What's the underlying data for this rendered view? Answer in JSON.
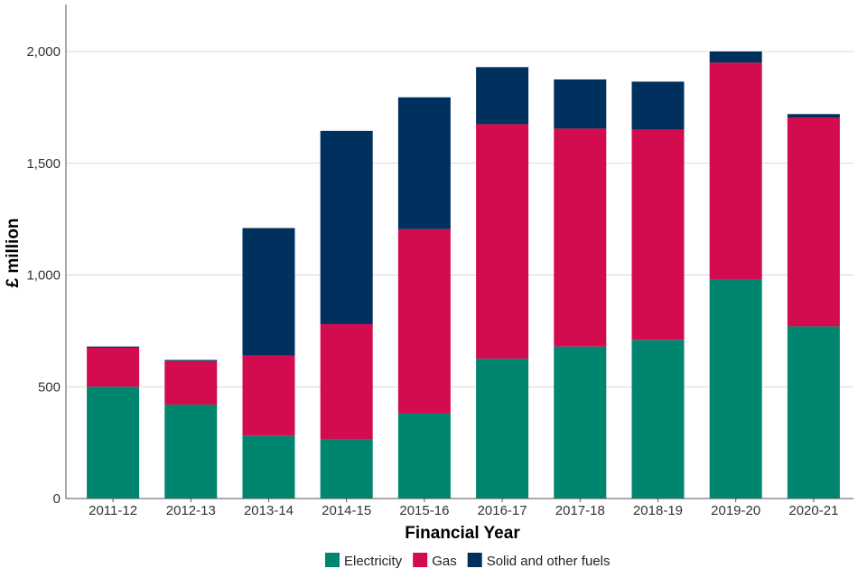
{
  "chart_data": {
    "type": "bar",
    "stacked": true,
    "title": "",
    "xlabel": "Financial Year",
    "ylabel": "£ million",
    "ylim": [
      0,
      2200
    ],
    "yticks": [
      0,
      500,
      1000,
      1500,
      2000
    ],
    "ytick_labels": [
      "0",
      "500",
      "1,000",
      "1,500",
      "2,000"
    ],
    "grid": true,
    "legend_position": "bottom",
    "categories": [
      "2011-12",
      "2012-13",
      "2013-14",
      "2014-15",
      "2015-16",
      "2016-17",
      "2017-18",
      "2018-19",
      "2019-20",
      "2020-21"
    ],
    "series": [
      {
        "name": "Electricity",
        "color": "#00856e",
        "values": [
          500,
          420,
          280,
          265,
          380,
          625,
          680,
          710,
          980,
          770
        ]
      },
      {
        "name": "Gas",
        "color": "#d30c50",
        "values": [
          175,
          195,
          360,
          515,
          825,
          1050,
          975,
          940,
          970,
          935
        ]
      },
      {
        "name": "Solid and other fuels",
        "color": "#00305e",
        "values": [
          5,
          5,
          570,
          865,
          590,
          255,
          220,
          215,
          50,
          15
        ]
      }
    ]
  }
}
